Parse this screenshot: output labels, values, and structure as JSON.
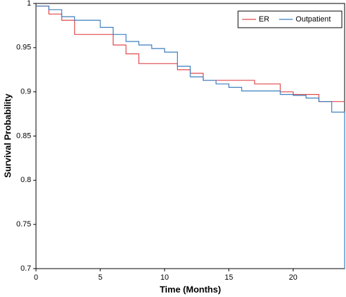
{
  "chart_data": {
    "type": "step",
    "xlabel": "Time (Months)",
    "ylabel": "Survival Probability",
    "xlim": [
      0,
      24
    ],
    "xticks": [
      0,
      5,
      10,
      15,
      20
    ],
    "ylim": [
      0.7,
      1
    ],
    "yticks": [
      0.7,
      0.75,
      0.8,
      0.85,
      0.9,
      0.95,
      1
    ],
    "legend": "upper-right",
    "grid": false,
    "series": [
      {
        "name": "ER",
        "color": "#e0474c",
        "x": [
          0,
          1,
          2,
          3,
          6,
          7,
          8,
          11,
          12,
          13,
          17,
          19,
          20,
          22,
          24
        ],
        "values": [
          0.997,
          0.988,
          0.981,
          0.965,
          0.953,
          0.943,
          0.932,
          0.925,
          0.921,
          0.913,
          0.909,
          0.9,
          0.897,
          0.889,
          0.889
        ]
      },
      {
        "name": "Outpatient",
        "color": "#3a7dbf",
        "x": [
          0,
          1,
          2,
          3,
          5,
          6,
          7,
          8,
          9,
          10,
          11,
          12,
          13,
          14,
          15,
          16,
          19,
          20,
          21,
          22,
          23,
          24
        ],
        "values": [
          0.997,
          0.993,
          0.985,
          0.981,
          0.973,
          0.965,
          0.957,
          0.953,
          0.949,
          0.945,
          0.929,
          0.917,
          0.913,
          0.909,
          0.905,
          0.901,
          0.897,
          0.896,
          0.893,
          0.889,
          0.877,
          0.7
        ]
      }
    ]
  }
}
